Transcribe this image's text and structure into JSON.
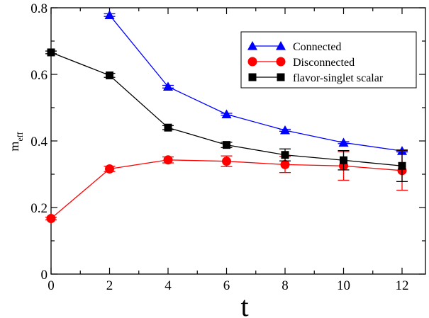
{
  "chart_data": {
    "type": "line",
    "xlabel": "t",
    "ylabel_main": "m",
    "ylabel_sub": "eff",
    "xlim": [
      0,
      12.8
    ],
    "ylim": [
      0,
      0.8
    ],
    "x_ticks": [
      0,
      2,
      4,
      6,
      8,
      10,
      12
    ],
    "y_ticks": [
      0,
      0.2,
      0.4,
      0.6,
      0.8
    ],
    "x_tick_labels": [
      "0",
      "2",
      "4",
      "6",
      "8",
      "10",
      "12"
    ],
    "y_tick_labels": [
      "0",
      "0.2",
      "0.4",
      "0.6",
      "0.8"
    ],
    "grid": false,
    "legend_position": "top-right",
    "series": [
      {
        "name": "Connected",
        "color": "#0000ff",
        "marker": "triangle",
        "x": [
          2,
          4,
          6,
          8,
          10,
          12
        ],
        "y": [
          0.778,
          0.563,
          0.48,
          0.432,
          0.395,
          0.37
        ],
        "err": [
          0.004,
          0.004,
          0.003,
          0.003,
          0.003,
          0.003
        ]
      },
      {
        "name": "Disconnected",
        "color": "#ff0000",
        "marker": "circle",
        "x": [
          0,
          2,
          4,
          6,
          8,
          10,
          12
        ],
        "y": [
          0.167,
          0.316,
          0.343,
          0.339,
          0.329,
          0.325,
          0.311
        ],
        "err": [
          0.004,
          0.008,
          0.009,
          0.016,
          0.024,
          0.043,
          0.059
        ]
      },
      {
        "name": "flavor-singlet scalar",
        "color": "#000000",
        "marker": "square",
        "x": [
          0,
          2,
          4,
          6,
          8,
          10,
          12
        ],
        "y": [
          0.666,
          0.597,
          0.44,
          0.388,
          0.358,
          0.342,
          0.325
        ],
        "err": [
          0.004,
          0.006,
          0.006,
          0.008,
          0.018,
          0.029,
          0.047
        ]
      }
    ]
  }
}
